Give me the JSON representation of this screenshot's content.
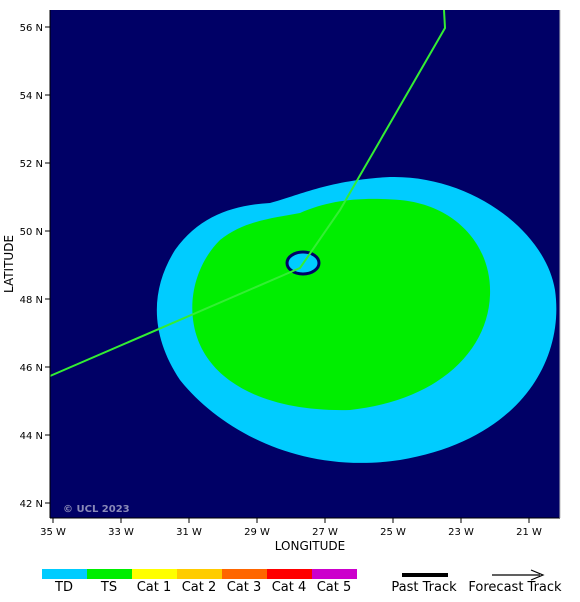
{
  "map": {
    "background_color": "#000066",
    "copyright": "© UCL 2023",
    "x_axis": {
      "label": "LONGITUDE",
      "ticks": [
        "35 W",
        "33 W",
        "31 W",
        "29 W",
        "27 W",
        "25 W",
        "23 W",
        "21 W"
      ]
    },
    "y_axis": {
      "label": "LATITUDE",
      "ticks": [
        "56 N",
        "54 N",
        "52 N",
        "50 N",
        "48 N",
        "46 N",
        "44 N",
        "42 N"
      ]
    },
    "wind_field": {
      "td_color": "#00ccff",
      "ts_color": "#00ee00",
      "eye_color": "#00ccff"
    },
    "track": {
      "color": "#33ee33"
    }
  },
  "legend": {
    "categories": [
      {
        "label": "TD",
        "color": "#00ccff"
      },
      {
        "label": "TS",
        "color": "#00ee00"
      },
      {
        "label": "Cat 1",
        "color": "#ffff00"
      },
      {
        "label": "Cat 2",
        "color": "#ffcc00"
      },
      {
        "label": "Cat 3",
        "color": "#ff6600"
      },
      {
        "label": "Cat 4",
        "color": "#ff0000"
      },
      {
        "label": "Cat 5",
        "color": "#cc00cc"
      }
    ],
    "past_track_label": "Past Track",
    "forecast_track_label": "Forecast Track"
  }
}
